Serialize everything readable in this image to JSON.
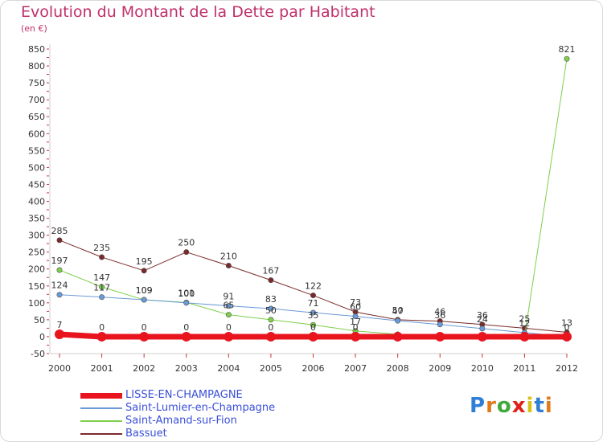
{
  "header": {
    "title": "Evolution du Montant de la Dette par Habitant",
    "unit": "(en €)"
  },
  "brand": {
    "letters": [
      "P",
      "r",
      "o",
      "x",
      "i",
      "t",
      "i"
    ],
    "colors": [
      "#2f7fd6",
      "#e07a1a",
      "#43a83a",
      "#e0201a",
      "#d8c21a",
      "#2f7fd6",
      "#e07a1a"
    ]
  },
  "chart_data": {
    "type": "line",
    "title": "Evolution du Montant de la Dette par Habitant",
    "ylabel": "(en €)",
    "x": [
      "2000",
      "2001",
      "2002",
      "2003",
      "2004",
      "2005",
      "2006",
      "2007",
      "2008",
      "2009",
      "2010",
      "2011",
      "2012"
    ],
    "ylim": [
      -50,
      850
    ],
    "yticks": [
      "-50",
      "0",
      "50",
      "100",
      "150",
      "200",
      "250",
      "300",
      "350",
      "400",
      "450",
      "500",
      "550",
      "600",
      "650",
      "700",
      "750",
      "800",
      "850"
    ],
    "grid": false,
    "legend": "bottom-left",
    "series": [
      {
        "name": "LISSE-EN-CHAMPAGNE",
        "color": "#e8141e",
        "width": 7,
        "values": [
          7,
          0,
          0,
          0,
          0,
          0,
          0,
          0,
          0,
          0,
          0,
          0,
          0
        ],
        "labels": [
          "7",
          "0",
          "0",
          "0",
          "0",
          "0",
          "0",
          "0",
          "",
          "",
          "",
          "",
          ""
        ]
      },
      {
        "name": "Saint-Lumier-en-Champagne",
        "color": "#6a9ad8",
        "width": 1,
        "values": [
          124,
          117,
          109,
          100,
          91,
          83,
          71,
          60,
          47,
          36,
          24,
          12,
          0
        ],
        "labels": [
          "124",
          "117",
          "109",
          "100",
          "91",
          "83",
          "71",
          "60",
          "47",
          "36",
          "24",
          "12",
          "0"
        ]
      },
      {
        "name": "Saint-Amand-sur-Fion",
        "color": "#7ed04a",
        "width": 1,
        "values": [
          197,
          147,
          109,
          101,
          65,
          50,
          35,
          17,
          7,
          0,
          0,
          0,
          821
        ],
        "labels": [
          "197",
          "147",
          "109",
          "101",
          "65",
          "50",
          "35",
          "17",
          "",
          "",
          "",
          "",
          "821"
        ]
      },
      {
        "name": "Bassuet",
        "color": "#7a2a2a",
        "width": 1,
        "values": [
          285,
          235,
          195,
          250,
          210,
          167,
          122,
          73,
          50,
          46,
          36,
          25,
          13
        ],
        "labels": [
          "285",
          "235",
          "195",
          "250",
          "210",
          "167",
          "122",
          "73",
          "50",
          "46",
          "36",
          "25",
          "13"
        ]
      }
    ]
  }
}
